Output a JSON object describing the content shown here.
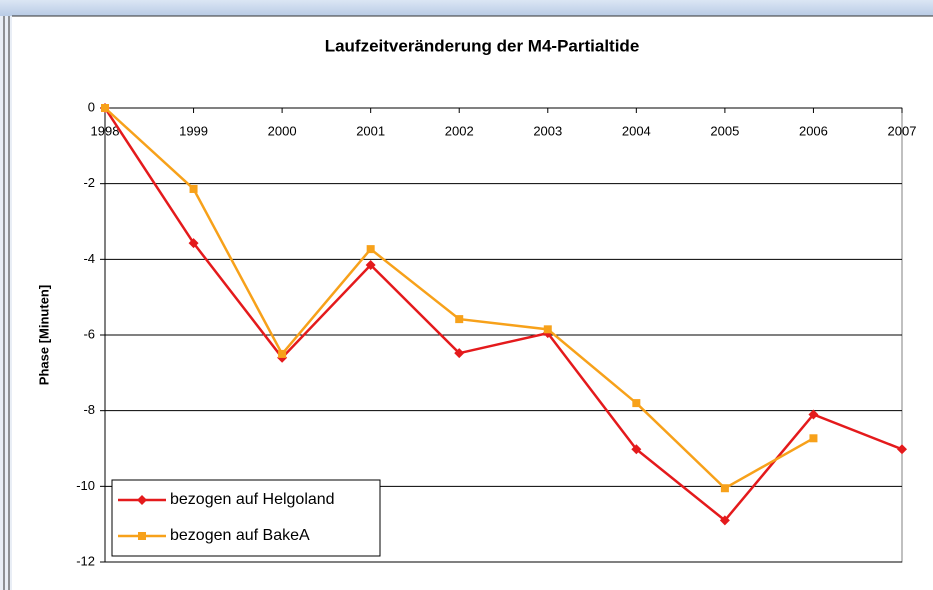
{
  "chart_data": {
    "type": "line",
    "title": "Laufzeitveränderung der M4-Partialtide",
    "y_label": "Phase [Minuten]",
    "categories": [
      "1998",
      "1999",
      "2000",
      "2001",
      "2002",
      "2003",
      "2004",
      "2005",
      "2006",
      "2007"
    ],
    "series": [
      {
        "name": "bezogen auf Helgoland",
        "color": "#e41a1c",
        "marker": "diamond",
        "values": [
          0,
          -3.57,
          -6.6,
          -4.15,
          -6.48,
          -5.95,
          -9.02,
          -10.9,
          -8.1,
          -9.02
        ]
      },
      {
        "name": "bezogen auf BakeA",
        "color": "#f7a11a",
        "marker": "square",
        "values": [
          0,
          -2.14,
          -6.5,
          -3.73,
          -5.58,
          -5.85,
          -7.8,
          -10.05,
          -8.73,
          null
        ]
      }
    ],
    "ylim": [
      -12,
      0
    ],
    "yticks": [
      -12,
      -10,
      -8,
      -6,
      -4,
      -2,
      0
    ],
    "grid": true,
    "legend": "lower left"
  }
}
